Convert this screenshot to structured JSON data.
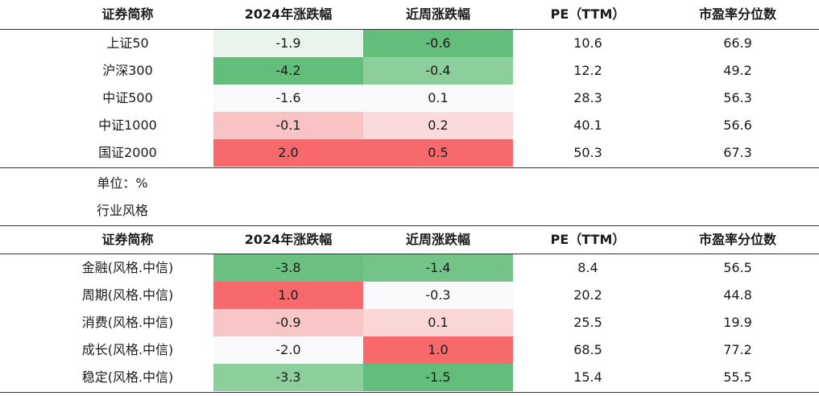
{
  "table1": {
    "headers": [
      "证券简称",
      "2024年涨跌幅",
      "近周涨跌幅",
      "PE（TTM）",
      "市盈率分位数"
    ],
    "rows": [
      {
        "name": "上证50",
        "ytd": "-1.9",
        "week": "-0.6",
        "pe": "10.6",
        "pct": "66.9",
        "ytd_color": "#e8f4ec",
        "week_color": "#63bd7b"
      },
      {
        "name": "沪深300",
        "ytd": "-4.2",
        "week": "-0.4",
        "pe": "12.2",
        "pct": "49.2",
        "ytd_color": "#63bd7b",
        "week_color": "#8ccf9c"
      },
      {
        "name": "中证500",
        "ytd": "-1.6",
        "week": "0.1",
        "pe": "28.3",
        "pct": "56.3",
        "ytd_color": "#fafafc",
        "week_color": "#fafafc"
      },
      {
        "name": "中证1000",
        "ytd": "-0.1",
        "week": "0.2",
        "pe": "40.1",
        "pct": "56.6",
        "ytd_color": "#f9c2c3",
        "week_color": "#fbdadb"
      },
      {
        "name": "国证2000",
        "ytd": "2.0",
        "week": "0.5",
        "pe": "50.3",
        "pct": "67.3",
        "ytd_color": "#f8696b",
        "week_color": "#f8696b"
      }
    ]
  },
  "unit_note": "单位：%",
  "section_title": "行业风格",
  "table2": {
    "headers": [
      "证券简称",
      "2024年涨跌幅",
      "近周涨跌幅",
      "PE（TTM）",
      "市盈率分位数"
    ],
    "rows": [
      {
        "name": "金融(风格.中信)",
        "ytd": "-3.8",
        "week": "-1.4",
        "pe": "8.4",
        "pct": "56.5",
        "ytd_color": "#6cc182",
        "week_color": "#74c489"
      },
      {
        "name": "周期(风格.中信)",
        "ytd": "1.0",
        "week": "-0.3",
        "pe": "20.2",
        "pct": "44.8",
        "ytd_color": "#f8696b",
        "week_color": "#fafafc"
      },
      {
        "name": "消费(风格.中信)",
        "ytd": "-0.9",
        "week": "0.1",
        "pe": "25.5",
        "pct": "19.9",
        "ytd_color": "#f9c6c7",
        "week_color": "#fbd6d7"
      },
      {
        "name": "成长(风格.中信)",
        "ytd": "-2.0",
        "week": "1.0",
        "pe": "68.5",
        "pct": "77.2",
        "ytd_color": "#fafafc",
        "week_color": "#f8696b"
      },
      {
        "name": "稳定(风格.中信)",
        "ytd": "-3.3",
        "week": "-1.5",
        "pe": "15.4",
        "pct": "55.5",
        "ytd_color": "#8ccf9c",
        "week_color": "#63bd7b"
      }
    ]
  }
}
